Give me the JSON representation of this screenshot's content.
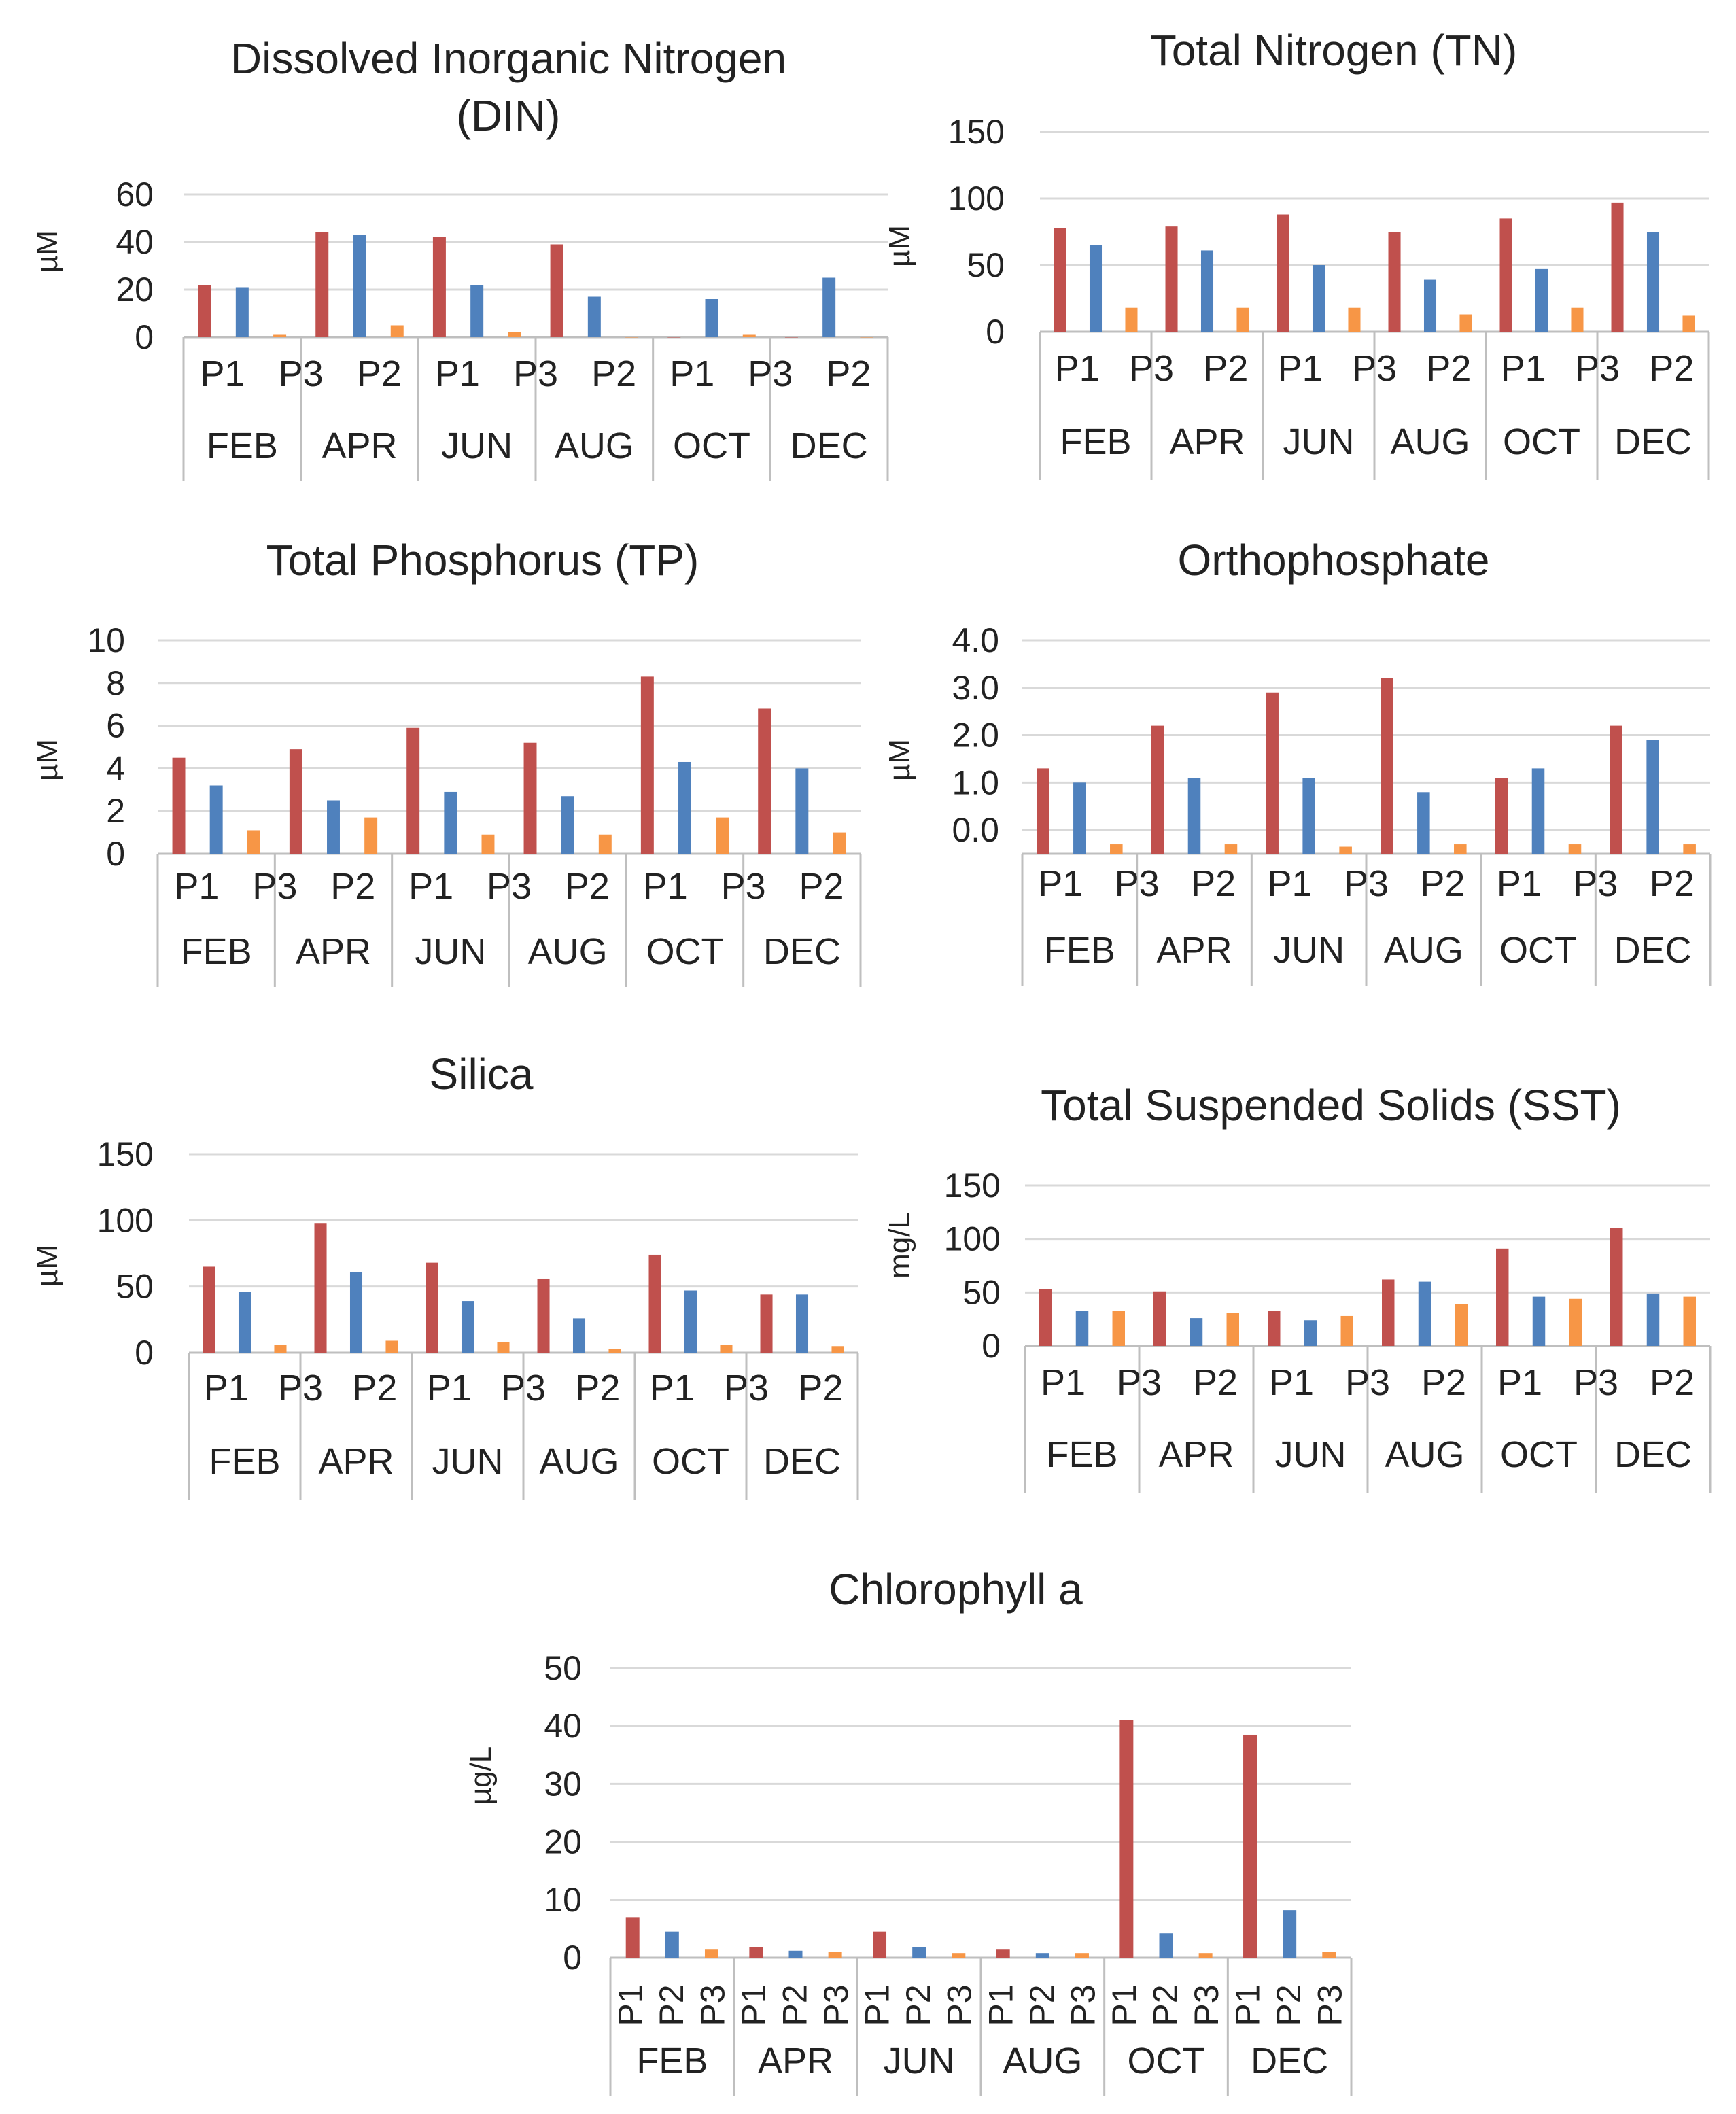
{
  "colors": {
    "P1": "#c0504d",
    "P2": "#4f81bd",
    "P3": "#f79646",
    "grid": "#d9d9d9",
    "axis": "#bfbfbf"
  },
  "chart_data": [
    {
      "id": "din",
      "type": "bar",
      "title": "Dissolved Inorganic Nitrogen (DIN)",
      "title_lines": [
        "Dissolved Inorganic Nitrogen",
        "(DIN)"
      ],
      "ylabel": "µM",
      "ylim": [
        0,
        60
      ],
      "yticks": [
        "0",
        "20",
        "40",
        "60"
      ],
      "months": [
        "FEB",
        "APR",
        "JUN",
        "AUG",
        "OCT",
        "DEC"
      ],
      "sub_labels": [
        "P1",
        "P3",
        "P2",
        "P1",
        "P3",
        "P2",
        "P1",
        "P3",
        "P2"
      ],
      "series": [
        {
          "name": "P1",
          "values": [
            22,
            44,
            42,
            39,
            0,
            0
          ]
        },
        {
          "name": "P2",
          "values": [
            21,
            43,
            22,
            17,
            16,
            25
          ]
        },
        {
          "name": "P3",
          "values": [
            1,
            5,
            2,
            0,
            1,
            0
          ]
        }
      ]
    },
    {
      "id": "tn",
      "type": "bar",
      "title": "Total Nitrogen (TN)",
      "title_lines": [
        "Total Nitrogen (TN)"
      ],
      "ylabel": "µM",
      "ylim": [
        0,
        150
      ],
      "yticks": [
        "0",
        "50",
        "100",
        "150"
      ],
      "months": [
        "FEB",
        "APR",
        "JUN",
        "AUG",
        "OCT",
        "DEC"
      ],
      "sub_labels": [
        "P1",
        "P3",
        "P2",
        "P1",
        "P3",
        "P2",
        "P1",
        "P3",
        "P2"
      ],
      "series": [
        {
          "name": "P1",
          "values": [
            78,
            79,
            88,
            75,
            85,
            97
          ]
        },
        {
          "name": "P2",
          "values": [
            65,
            61,
            50,
            39,
            47,
            75
          ]
        },
        {
          "name": "P3",
          "values": [
            18,
            18,
            18,
            13,
            18,
            12
          ]
        }
      ]
    },
    {
      "id": "tp",
      "type": "bar",
      "title": "Total Phosphorus (TP)",
      "title_lines": [
        "Total Phosphorus (TP)"
      ],
      "ylabel": "µM",
      "ylim": [
        0,
        10
      ],
      "yticks": [
        "0",
        "2",
        "4",
        "6",
        "8",
        "10"
      ],
      "months": [
        "FEB",
        "APR",
        "JUN",
        "AUG",
        "OCT",
        "DEC"
      ],
      "sub_labels": [
        "P1",
        "P3",
        "P2",
        "P1",
        "P3",
        "P2",
        "P1",
        "P3",
        "P2"
      ],
      "series": [
        {
          "name": "P1",
          "values": [
            4.5,
            4.9,
            5.9,
            5.2,
            8.3,
            6.8
          ]
        },
        {
          "name": "P2",
          "values": [
            3.2,
            2.5,
            2.9,
            2.7,
            4.3,
            4.0
          ]
        },
        {
          "name": "P3",
          "values": [
            1.1,
            1.7,
            0.9,
            0.9,
            1.7,
            1.0
          ]
        }
      ]
    },
    {
      "id": "ortho",
      "type": "bar",
      "title": "Orthophosphate",
      "title_lines": [
        "Orthophosphate"
      ],
      "ylabel": "µM",
      "ylim": [
        -0.5,
        4.0
      ],
      "yticks": [
        "0.0",
        "1.0",
        "2.0",
        "3.0",
        "4.0"
      ],
      "months": [
        "FEB",
        "APR",
        "JUN",
        "AUG",
        "OCT",
        "DEC"
      ],
      "sub_labels": [
        "P1",
        "P3",
        "P2",
        "P1",
        "P3",
        "P2",
        "P1",
        "P3",
        "P2"
      ],
      "series": [
        {
          "name": "P1",
          "values": [
            1.3,
            2.2,
            2.9,
            3.2,
            1.1,
            2.2
          ]
        },
        {
          "name": "P2",
          "values": [
            1.0,
            1.1,
            1.1,
            0.8,
            1.3,
            1.9
          ]
        },
        {
          "name": "P3",
          "values": [
            -0.3,
            -0.3,
            -0.35,
            -0.3,
            -0.3,
            -0.3
          ]
        }
      ]
    },
    {
      "id": "silica",
      "type": "bar",
      "title": "Silica",
      "title_lines": [
        "Silica"
      ],
      "ylabel": "µM",
      "ylim": [
        0,
        150
      ],
      "yticks": [
        "0",
        "50",
        "100",
        "150"
      ],
      "months": [
        "FEB",
        "APR",
        "JUN",
        "AUG",
        "OCT",
        "DEC"
      ],
      "sub_labels": [
        "P1",
        "P3",
        "P2",
        "P1",
        "P3",
        "P2",
        "P1",
        "P3",
        "P2"
      ],
      "series": [
        {
          "name": "P1",
          "values": [
            65,
            98,
            68,
            56,
            74,
            44
          ]
        },
        {
          "name": "P2",
          "values": [
            46,
            61,
            39,
            26,
            47,
            44
          ]
        },
        {
          "name": "P3",
          "values": [
            6,
            9,
            8,
            3,
            6,
            5
          ]
        }
      ]
    },
    {
      "id": "sst",
      "type": "bar",
      "title": "Total Suspended Solids (SST)",
      "title_lines": [
        "Total Suspended Solids (SST)"
      ],
      "ylabel": "mg/L",
      "ylim": [
        0,
        150
      ],
      "yticks": [
        "0",
        "50",
        "100",
        "150"
      ],
      "months": [
        "FEB",
        "APR",
        "JUN",
        "AUG",
        "OCT",
        "DEC"
      ],
      "sub_labels": [
        "P1",
        "P3",
        "P2",
        "P1",
        "P3",
        "P2",
        "P1",
        "P3",
        "P2"
      ],
      "series": [
        {
          "name": "P1",
          "values": [
            53,
            51,
            33,
            62,
            91,
            110
          ]
        },
        {
          "name": "P2",
          "values": [
            33,
            26,
            24,
            60,
            46,
            49
          ]
        },
        {
          "name": "P3",
          "values": [
            33,
            31,
            28,
            39,
            44,
            46
          ]
        }
      ]
    },
    {
      "id": "chla",
      "type": "bar",
      "title": "Chlorophyll a",
      "title_lines": [
        "Chlorophyll a"
      ],
      "ylabel": "µg/L",
      "ylim": [
        0,
        50
      ],
      "yticks": [
        "0",
        "10",
        "20",
        "30",
        "40",
        "50"
      ],
      "months": [
        "FEB",
        "APR",
        "JUN",
        "AUG",
        "OCT",
        "DEC"
      ],
      "sub_labels": [
        "P1",
        "P2",
        "P3",
        "P1",
        "P2",
        "P3",
        "P1",
        "P2",
        "P3",
        "P1",
        "P2",
        "P3",
        "P1",
        "P2",
        "P3",
        "P1",
        "P2",
        "P3"
      ],
      "series": [
        {
          "name": "P1",
          "values": [
            7,
            1.8,
            4.5,
            1.5,
            41,
            38.5
          ]
        },
        {
          "name": "P2",
          "values": [
            4.5,
            1.2,
            1.8,
            0.8,
            4.2,
            8.2
          ]
        },
        {
          "name": "P3",
          "values": [
            1.5,
            1,
            0.8,
            0.8,
            0.8,
            1
          ]
        }
      ]
    }
  ]
}
